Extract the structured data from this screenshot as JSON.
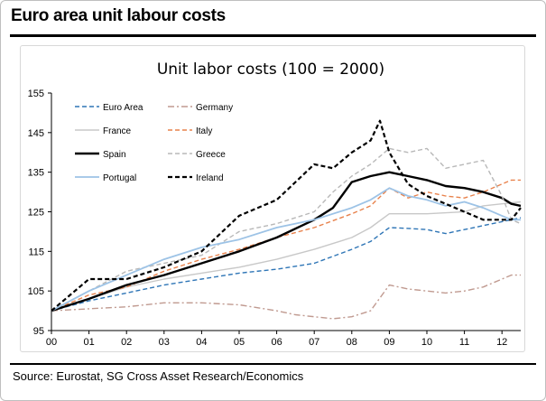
{
  "header": {
    "title": "Euro area unit labour costs"
  },
  "source": "Source: Eurostat, SG Cross Asset Research/Economics",
  "chart_data": {
    "type": "line",
    "title": "Unit labor costs (100 = 2000)",
    "xlabel": "",
    "ylabel": "",
    "x_ticks": [
      "00",
      "01",
      "02",
      "03",
      "04",
      "05",
      "06",
      "07",
      "08",
      "09",
      "10",
      "11",
      "12"
    ],
    "y_ticks": [
      95,
      105,
      115,
      125,
      135,
      145,
      155
    ],
    "xlim": [
      2000,
      2012.5
    ],
    "ylim": [
      95,
      155
    ],
    "grid": false,
    "legend_position": "top-left",
    "series": [
      {
        "name": "Euro Area",
        "color": "#2e75b6",
        "dash": "dash",
        "x": [
          2000,
          2001,
          2002,
          2003,
          2004,
          2005,
          2006,
          2007,
          2008,
          2008.5,
          2009,
          2009.5,
          2010,
          2010.5,
          2011,
          2011.5,
          2012,
          2012.25,
          2012.5
        ],
        "y": [
          100,
          102.5,
          104.5,
          106.5,
          108,
          109.5,
          110.5,
          112,
          115.5,
          117.5,
          121,
          120.8,
          120.5,
          119.5,
          120.5,
          121.5,
          122.5,
          123,
          123.5
        ]
      },
      {
        "name": "Germany",
        "color": "#c09a90",
        "dash": "dashdot",
        "x": [
          2000,
          2001,
          2002,
          2003,
          2004,
          2005,
          2006,
          2006.5,
          2007,
          2007.5,
          2008,
          2008.5,
          2009,
          2009.5,
          2010,
          2010.5,
          2011,
          2011.5,
          2012,
          2012.25,
          2012.5
        ],
        "y": [
          100,
          100.5,
          101,
          102,
          102,
          101.5,
          100,
          99,
          98.5,
          98,
          98.5,
          100,
          106.5,
          105.5,
          105,
          104.5,
          105,
          106,
          108,
          109,
          109
        ]
      },
      {
        "name": "France",
        "color": "#c8c8c8",
        "dash": "solid",
        "x": [
          2000,
          2001,
          2002,
          2003,
          2004,
          2005,
          2006,
          2007,
          2008,
          2008.5,
          2009,
          2009.5,
          2010,
          2011,
          2011.5,
          2012,
          2012.5
        ],
        "y": [
          100,
          103,
          106,
          108,
          109.5,
          111,
          113,
          115.5,
          118.5,
          121,
          124.5,
          124.5,
          124.5,
          125,
          126.5,
          127,
          127.5
        ]
      },
      {
        "name": "Italy",
        "color": "#e8824c",
        "dash": "dash",
        "x": [
          2000,
          2001,
          2002,
          2003,
          2004,
          2005,
          2006,
          2007,
          2008,
          2008.5,
          2009,
          2009.5,
          2010,
          2010.5,
          2011,
          2011.5,
          2012,
          2012.25,
          2012.5
        ],
        "y": [
          100,
          104,
          106,
          110,
          113,
          115.5,
          118.5,
          121,
          124.5,
          126.5,
          131,
          128.5,
          130,
          129,
          128.5,
          130,
          132,
          133,
          133
        ]
      },
      {
        "name": "Spain",
        "color": "#000000",
        "dash": "solid",
        "width": 2.4,
        "x": [
          2000,
          2001,
          2002,
          2003,
          2004,
          2005,
          2006,
          2007,
          2007.5,
          2008,
          2008.5,
          2009,
          2009.5,
          2010,
          2010.5,
          2011,
          2011.5,
          2012,
          2012.25,
          2012.5
        ],
        "y": [
          100,
          103,
          106.5,
          109,
          112,
          115,
          118.5,
          123,
          126,
          132.5,
          134,
          135,
          134,
          133,
          131.5,
          131,
          130,
          128.5,
          127,
          126.5
        ]
      },
      {
        "name": "Greece",
        "color": "#b8b8b8",
        "dash": "dash",
        "x": [
          2000,
          2001,
          2002,
          2003,
          2004,
          2005,
          2006,
          2007,
          2007.5,
          2008,
          2008.5,
          2009,
          2009.5,
          2010,
          2010.5,
          2011,
          2011.5,
          2012,
          2012.25,
          2012.5
        ],
        "y": [
          100,
          105,
          110,
          112,
          114,
          120,
          122,
          125,
          130,
          134,
          137,
          141,
          140,
          141,
          136,
          137,
          138,
          129,
          123,
          122
        ]
      },
      {
        "name": "Portugal",
        "color": "#9dc3e6",
        "dash": "solid",
        "width": 1.8,
        "x": [
          2000,
          2001,
          2002,
          2003,
          2004,
          2005,
          2006,
          2007,
          2008,
          2008.5,
          2009,
          2009.5,
          2010,
          2010.5,
          2011,
          2011.5,
          2012,
          2012.25,
          2012.5
        ],
        "y": [
          100,
          105,
          109,
          113,
          116,
          118,
          121,
          123,
          126,
          128,
          131,
          129,
          128,
          126.5,
          127.5,
          126,
          124,
          123,
          123
        ]
      },
      {
        "name": "Ireland",
        "color": "#000000",
        "dash": "dash",
        "width": 2.2,
        "x": [
          2000,
          2001,
          2002,
          2003,
          2004,
          2005,
          2006,
          2007,
          2007.5,
          2008,
          2008.5,
          2008.75,
          2009,
          2009.5,
          2010,
          2010.5,
          2011,
          2011.5,
          2012,
          2012.25,
          2012.5
        ],
        "y": [
          100,
          108,
          108,
          111,
          115,
          124,
          128,
          137,
          136,
          140,
          143,
          148,
          140,
          132,
          129,
          127,
          125,
          123,
          123,
          123,
          126
        ]
      }
    ]
  }
}
